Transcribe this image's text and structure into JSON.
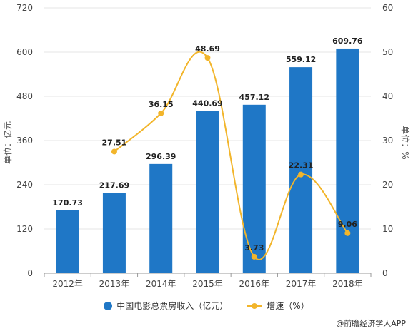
{
  "chart_data": {
    "type": "bar",
    "categories": [
      "2012年",
      "2013年",
      "2014年",
      "2015年",
      "2016年",
      "2017年",
      "2018年"
    ],
    "series": [
      {
        "name": "中国电影总票房收入（亿元）",
        "type": "bar",
        "axis": "left",
        "color": "#1f77c6",
        "values": [
          170.73,
          217.69,
          296.39,
          440.69,
          457.12,
          559.12,
          609.76
        ],
        "labels": [
          "170.73",
          "217.69",
          "296.39",
          "440.69",
          "457.12",
          "559.12",
          "609.76"
        ]
      },
      {
        "name": "增速（%）",
        "type": "line",
        "axis": "right",
        "color": "#f2b52b",
        "values": [
          null,
          27.51,
          36.15,
          48.69,
          3.73,
          22.31,
          9.06
        ],
        "labels": [
          "",
          "27.51",
          "36.15",
          "48.69",
          "3.73",
          "22.31",
          "9.06"
        ]
      }
    ],
    "ylabel": "单位：亿元",
    "y2label": "单位：%",
    "ylim": [
      0,
      720
    ],
    "y2lim": [
      0,
      60
    ],
    "yticks": [
      "0",
      "120",
      "240",
      "360",
      "480",
      "600",
      "720"
    ],
    "y2ticks": [
      "0",
      "10",
      "20",
      "30",
      "40",
      "50",
      "60"
    ],
    "grid": true,
    "legend_position": "bottom"
  },
  "source": "@前瞻经济学人APP"
}
